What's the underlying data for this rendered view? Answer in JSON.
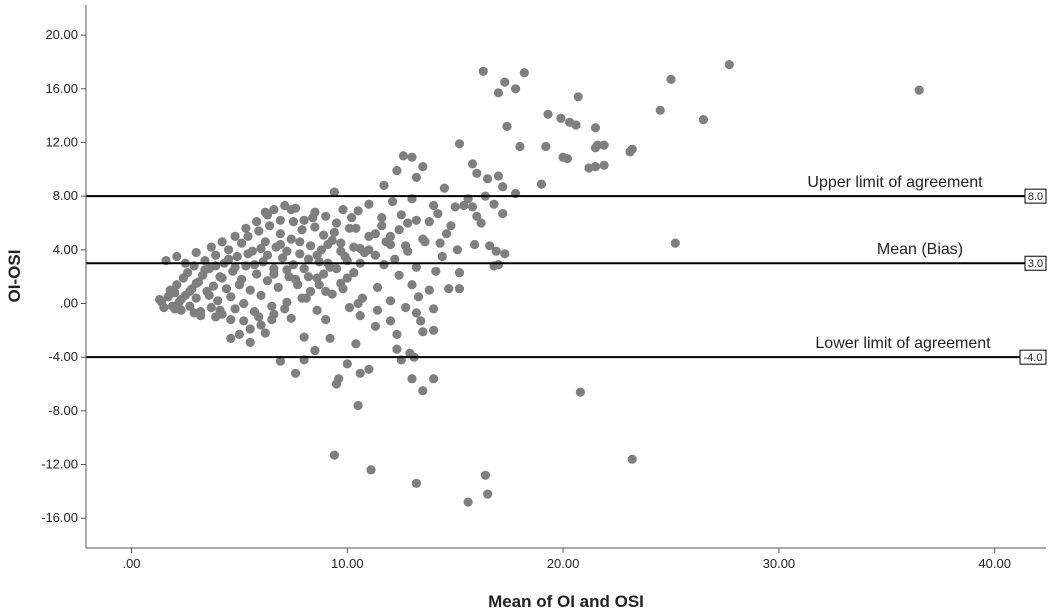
{
  "chart_data": {
    "type": "scatter",
    "title": "",
    "xlabel": "Mean of OI and OSI",
    "ylabel": "OI-OSI",
    "xlim": [
      -2,
      42.5
    ],
    "ylim": [
      -19,
      22
    ],
    "x_ticks": [
      0,
      10,
      20,
      30,
      40
    ],
    "x_tick_labels": [
      ".00",
      "10.00",
      "20.00",
      "30.00",
      "40.00"
    ],
    "y_ticks": [
      20,
      16,
      12,
      8,
      4,
      0,
      -4,
      -8,
      -12,
      -16
    ],
    "y_tick_labels": [
      "20.00",
      "16.00",
      "12.00",
      "8.00",
      "4.00",
      ".00",
      "-4.00",
      "-8.00",
      "-12.00",
      "-16.00"
    ],
    "grid": false,
    "marker_color": "#7f7f7f",
    "reference_lines": [
      {
        "name": "Upper limit of agreement",
        "y": 8.0,
        "value_label": "8.0"
      },
      {
        "name": "Mean (Bias)",
        "y": 3.0,
        "value_label": "3.0"
      },
      {
        "name": "Lower limit of agreement",
        "y": -4.0,
        "value_label": "-4.0"
      }
    ],
    "points": [
      [
        16.3,
        17.3
      ],
      [
        18.2,
        17.2
      ],
      [
        17.3,
        16.5
      ],
      [
        17.8,
        16.0
      ],
      [
        17.0,
        15.7
      ],
      [
        25.0,
        16.7
      ],
      [
        27.7,
        17.8
      ],
      [
        36.5,
        15.9
      ],
      [
        20.7,
        15.4
      ],
      [
        19.3,
        14.1
      ],
      [
        19.9,
        13.8
      ],
      [
        20.3,
        13.5
      ],
      [
        20.6,
        13.3
      ],
      [
        24.5,
        14.4
      ],
      [
        26.5,
        13.7
      ],
      [
        21.5,
        13.1
      ],
      [
        17.4,
        13.2
      ],
      [
        15.2,
        11.9
      ],
      [
        18.0,
        11.7
      ],
      [
        19.2,
        11.7
      ],
      [
        21.6,
        11.8
      ],
      [
        21.9,
        11.8
      ],
      [
        23.1,
        11.3
      ],
      [
        21.5,
        11.6
      ],
      [
        12.6,
        11.0
      ],
      [
        13.0,
        10.9
      ],
      [
        20.0,
        10.9
      ],
      [
        20.2,
        10.8
      ],
      [
        21.2,
        10.1
      ],
      [
        21.5,
        10.2
      ],
      [
        21.9,
        10.3
      ],
      [
        15.8,
        10.4
      ],
      [
        16.0,
        9.7
      ],
      [
        17.0,
        9.5
      ],
      [
        13.5,
        10.2
      ],
      [
        12.3,
        9.9
      ],
      [
        13.2,
        9.4
      ],
      [
        16.5,
        9.3
      ],
      [
        11.7,
        8.8
      ],
      [
        19.0,
        8.9
      ],
      [
        9.4,
        8.3
      ],
      [
        14.5,
        8.6
      ],
      [
        17.2,
        8.7
      ],
      [
        17.8,
        8.2
      ],
      [
        16.4,
        8.0
      ],
      [
        15.6,
        7.8
      ],
      [
        13.0,
        7.8
      ],
      [
        12.1,
        7.6
      ],
      [
        11.0,
        7.4
      ],
      [
        14.0,
        7.3
      ],
      [
        15.0,
        7.2
      ],
      [
        15.8,
        7.2
      ],
      [
        16.8,
        7.4
      ],
      [
        17.2,
        6.7
      ],
      [
        12.5,
        6.6
      ],
      [
        10.5,
        6.9
      ],
      [
        11.6,
        6.4
      ],
      [
        12.8,
        6.0
      ],
      [
        13.8,
        6.1
      ],
      [
        14.8,
        5.8
      ],
      [
        16.0,
        6.5
      ],
      [
        9.8,
        7.0
      ],
      [
        9.0,
        6.5
      ],
      [
        8.5,
        6.8
      ],
      [
        8.0,
        6.2
      ],
      [
        7.6,
        7.1
      ],
      [
        7.1,
        7.3
      ],
      [
        6.6,
        7.0
      ],
      [
        6.2,
        6.8
      ],
      [
        10.4,
        5.6
      ],
      [
        11.3,
        5.2
      ],
      [
        12.0,
        5.0
      ],
      [
        13.5,
        4.8
      ],
      [
        14.3,
        4.5
      ],
      [
        12.7,
        4.3
      ],
      [
        11.8,
        4.6
      ],
      [
        11.0,
        4.0
      ],
      [
        10.3,
        4.2
      ],
      [
        9.7,
        3.9
      ],
      [
        9.1,
        4.4
      ],
      [
        8.6,
        3.6
      ],
      [
        15.1,
        4.0
      ],
      [
        15.9,
        4.4
      ],
      [
        16.6,
        4.3
      ],
      [
        16.9,
        3.9
      ],
      [
        17.3,
        3.7
      ],
      [
        14.4,
        3.5
      ],
      [
        12.2,
        3.3
      ],
      [
        10.6,
        3.0
      ],
      [
        11.7,
        2.9
      ],
      [
        13.2,
        2.7
      ],
      [
        14.1,
        2.4
      ],
      [
        9.5,
        2.6
      ],
      [
        8.9,
        2.2
      ],
      [
        8.2,
        2.0
      ],
      [
        7.6,
        1.8
      ],
      [
        7.2,
        2.5
      ],
      [
        10.0,
        1.9
      ],
      [
        12.4,
        2.1
      ],
      [
        15.2,
        2.3
      ],
      [
        16.8,
        2.8
      ],
      [
        8.7,
        1.4
      ],
      [
        9.8,
        1.1
      ],
      [
        11.4,
        1.2
      ],
      [
        13.0,
        1.4
      ],
      [
        13.8,
        1.0
      ],
      [
        14.7,
        1.1
      ],
      [
        9.3,
        0.7
      ],
      [
        10.7,
        0.4
      ],
      [
        12.0,
        0.2
      ],
      [
        15.2,
        1.1
      ],
      [
        13.3,
        0.5
      ],
      [
        8.3,
        0.9
      ],
      [
        7.9,
        0.4
      ],
      [
        10.1,
        -0.3
      ],
      [
        11.4,
        -0.5
      ],
      [
        12.7,
        -0.3
      ],
      [
        13.2,
        -0.7
      ],
      [
        14.0,
        -0.4
      ],
      [
        8.6,
        -0.5
      ],
      [
        7.1,
        -0.4
      ],
      [
        6.6,
        -0.8
      ],
      [
        7.4,
        -1.1
      ],
      [
        9.0,
        -1.2
      ],
      [
        10.6,
        -0.9
      ],
      [
        12.0,
        -1.3
      ],
      [
        13.4,
        -1.3
      ],
      [
        11.3,
        -1.7
      ],
      [
        12.3,
        -2.3
      ],
      [
        13.5,
        -2.1
      ],
      [
        14.0,
        -2.0
      ],
      [
        6.0,
        -1.6
      ],
      [
        5.5,
        -1.9
      ],
      [
        5.0,
        -2.3
      ],
      [
        6.2,
        -2.2
      ],
      [
        4.6,
        -2.6
      ],
      [
        5.5,
        -2.9
      ],
      [
        8.0,
        -2.5
      ],
      [
        9.2,
        -2.6
      ],
      [
        10.4,
        -3.0
      ],
      [
        12.3,
        -3.4
      ],
      [
        12.9,
        -3.7
      ],
      [
        8.5,
        -3.5
      ],
      [
        6.9,
        -4.3
      ],
      [
        8.0,
        -4.2
      ],
      [
        10.0,
        -4.5
      ],
      [
        12.5,
        -4.2
      ],
      [
        13.1,
        -4.0
      ],
      [
        7.6,
        -5.2
      ],
      [
        10.6,
        -5.2
      ],
      [
        11.0,
        -4.9
      ],
      [
        9.6,
        -5.6
      ],
      [
        13.0,
        -5.6
      ],
      [
        14.0,
        -5.6
      ],
      [
        13.5,
        -6.5
      ],
      [
        9.5,
        -6.0
      ],
      [
        20.8,
        -6.6
      ],
      [
        10.5,
        -7.6
      ],
      [
        9.4,
        -11.3
      ],
      [
        11.1,
        -12.4
      ],
      [
        13.2,
        -13.4
      ],
      [
        15.6,
        -14.8
      ],
      [
        16.4,
        -12.8
      ],
      [
        16.5,
        -14.2
      ],
      [
        23.2,
        -11.6
      ],
      [
        25.2,
        4.5
      ],
      [
        23.2,
        11.5
      ],
      [
        17.0,
        2.9
      ],
      [
        1.3,
        0.3
      ],
      [
        1.5,
        -0.3
      ],
      [
        1.7,
        0.5
      ],
      [
        1.8,
        1.0
      ],
      [
        1.9,
        -0.2
      ],
      [
        2.0,
        0.8
      ],
      [
        2.1,
        1.4
      ],
      [
        2.2,
        0.1
      ],
      [
        2.3,
        -0.5
      ],
      [
        2.4,
        1.9
      ],
      [
        2.5,
        0.6
      ],
      [
        2.6,
        2.3
      ],
      [
        2.7,
        -0.2
      ],
      [
        2.8,
        1.1
      ],
      [
        2.9,
        2.8
      ],
      [
        3.0,
        0.4
      ],
      [
        3.1,
        1.6
      ],
      [
        3.2,
        -0.6
      ],
      [
        3.3,
        2.1
      ],
      [
        3.4,
        3.2
      ],
      [
        3.5,
        0.9
      ],
      [
        3.6,
        2.6
      ],
      [
        3.7,
        -0.3
      ],
      [
        3.8,
        1.3
      ],
      [
        3.9,
        3.6
      ],
      [
        4.0,
        0.2
      ],
      [
        4.1,
        2.0
      ],
      [
        4.2,
        -0.8
      ],
      [
        4.3,
        3.0
      ],
      [
        4.4,
        1.1
      ],
      [
        4.5,
        4.0
      ],
      [
        4.6,
        0.5
      ],
      [
        4.7,
        2.4
      ],
      [
        4.8,
        -0.4
      ],
      [
        4.9,
        3.5
      ],
      [
        5.0,
        1.4
      ],
      [
        5.1,
        4.5
      ],
      [
        5.2,
        0.0
      ],
      [
        5.3,
        2.8
      ],
      [
        5.4,
        5.0
      ],
      [
        5.5,
        1.0
      ],
      [
        5.6,
        3.9
      ],
      [
        5.7,
        -0.6
      ],
      [
        5.8,
        2.2
      ],
      [
        5.9,
        5.4
      ],
      [
        6.0,
        0.6
      ],
      [
        6.1,
        3.1
      ],
      [
        6.2,
        4.6
      ],
      [
        6.3,
        1.7
      ],
      [
        6.4,
        5.8
      ],
      [
        6.5,
        -0.2
      ],
      [
        6.6,
        2.6
      ],
      [
        6.7,
        4.2
      ],
      [
        6.8,
        1.2
      ],
      [
        6.9,
        5.2
      ],
      [
        7.0,
        3.4
      ],
      [
        7.2,
        0.1
      ],
      [
        7.3,
        2.0
      ],
      [
        7.4,
        4.8
      ],
      [
        7.5,
        6.1
      ],
      [
        7.7,
        1.4
      ],
      [
        7.8,
        3.7
      ],
      [
        7.9,
        5.5
      ],
      [
        8.0,
        2.6
      ],
      [
        8.1,
        0.4
      ],
      [
        8.3,
        4.3
      ],
      [
        8.4,
        6.4
      ],
      [
        8.6,
        1.9
      ],
      [
        8.7,
        3.1
      ],
      [
        8.9,
        5.1
      ],
      [
        9.0,
        0.9
      ],
      [
        9.2,
        2.7
      ],
      [
        9.3,
        4.7
      ],
      [
        9.5,
        6.0
      ],
      [
        9.7,
        1.5
      ],
      [
        9.9,
        3.5
      ],
      [
        10.1,
        5.6
      ],
      [
        10.3,
        2.3
      ],
      [
        10.5,
        0.0
      ],
      [
        10.8,
        3.8
      ],
      [
        2.5,
        3.0
      ],
      [
        2.1,
        3.5
      ],
      [
        3.0,
        3.8
      ],
      [
        3.7,
        4.2
      ],
      [
        4.2,
        4.6
      ],
      [
        4.8,
        5.0
      ],
      [
        5.3,
        5.6
      ],
      [
        5.8,
        6.1
      ],
      [
        6.3,
        6.6
      ],
      [
        6.9,
        6.2
      ],
      [
        7.4,
        7.0
      ],
      [
        3.2,
        -0.9
      ],
      [
        3.9,
        -1.0
      ],
      [
        4.6,
        -1.2
      ],
      [
        5.2,
        -1.3
      ],
      [
        5.9,
        -1.0
      ],
      [
        6.5,
        -1.2
      ],
      [
        2.9,
        -0.7
      ],
      [
        4.1,
        -0.5
      ],
      [
        1.6,
        3.2
      ],
      [
        1.4,
        0.1
      ],
      [
        2.0,
        -0.4
      ],
      [
        2.3,
        0.3
      ],
      [
        2.7,
        0.9
      ],
      [
        3.0,
        1.5
      ],
      [
        3.4,
        2.5
      ],
      [
        3.6,
        0.6
      ],
      [
        3.9,
        2.8
      ],
      [
        4.2,
        1.9
      ],
      [
        4.5,
        3.3
      ],
      [
        4.8,
        2.7
      ],
      [
        5.1,
        1.8
      ],
      [
        5.4,
        3.7
      ],
      [
        5.7,
        2.9
      ],
      [
        6.0,
        4.1
      ],
      [
        6.3,
        3.6
      ],
      [
        6.6,
        2.2
      ],
      [
        6.9,
        4.4
      ],
      [
        7.2,
        3.9
      ],
      [
        7.5,
        2.9
      ],
      [
        7.8,
        4.6
      ],
      [
        8.2,
        3.3
      ],
      [
        8.5,
        5.7
      ],
      [
        8.8,
        4.0
      ],
      [
        9.1,
        3.0
      ],
      [
        9.4,
        5.3
      ],
      [
        9.7,
        4.5
      ],
      [
        10.0,
        3.2
      ],
      [
        10.2,
        6.4
      ],
      [
        10.6,
        4.1
      ],
      [
        11.0,
        5.0
      ],
      [
        11.3,
        3.6
      ],
      [
        11.6,
        5.8
      ],
      [
        12.0,
        4.4
      ],
      [
        12.4,
        5.5
      ],
      [
        12.8,
        3.9
      ],
      [
        13.2,
        6.2
      ],
      [
        13.6,
        4.6
      ],
      [
        14.2,
        6.7
      ],
      [
        14.6,
        5.2
      ],
      [
        15.4,
        7.3
      ],
      [
        16.2,
        6.0
      ]
    ]
  }
}
